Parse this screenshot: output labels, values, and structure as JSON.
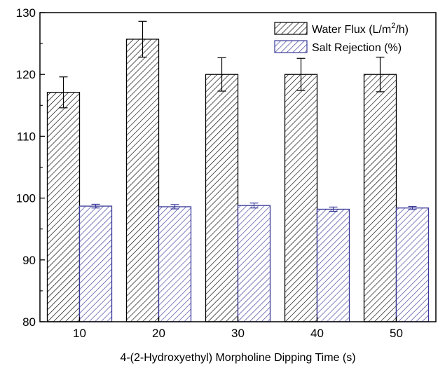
{
  "chart_data": {
    "type": "bar",
    "title": "",
    "xlabel": "4-(2-Hydroxyethyl) Morpholine Dipping Time (s)",
    "ylabel": "",
    "categories": [
      "10",
      "20",
      "30",
      "40",
      "50"
    ],
    "ylim": [
      80,
      130
    ],
    "yticks": [
      "80",
      "90",
      "100",
      "110",
      "120",
      "130"
    ],
    "grid": false,
    "legend_position": "top-right",
    "series": [
      {
        "name": "Water Flux (L/m²/h)",
        "name_base": "Water Flux (L/m",
        "name_sup": "2",
        "name_tail": "/h)",
        "values": [
          117.1,
          125.7,
          120.0,
          120.0,
          120.0
        ],
        "errors": [
          2.5,
          2.9,
          2.7,
          2.6,
          2.8
        ],
        "fill": "#ffffff",
        "hatch_color": "#000000",
        "edge_color": "#000000"
      },
      {
        "name": "Salt Rejection (%)",
        "values": [
          98.7,
          98.6,
          98.8,
          98.2,
          98.4
        ],
        "errors": [
          0.3,
          0.35,
          0.4,
          0.35,
          0.25
        ],
        "fill": "#ffffff",
        "hatch_color": "#3a3a9a",
        "edge_color": "#3a3a9a"
      }
    ]
  }
}
